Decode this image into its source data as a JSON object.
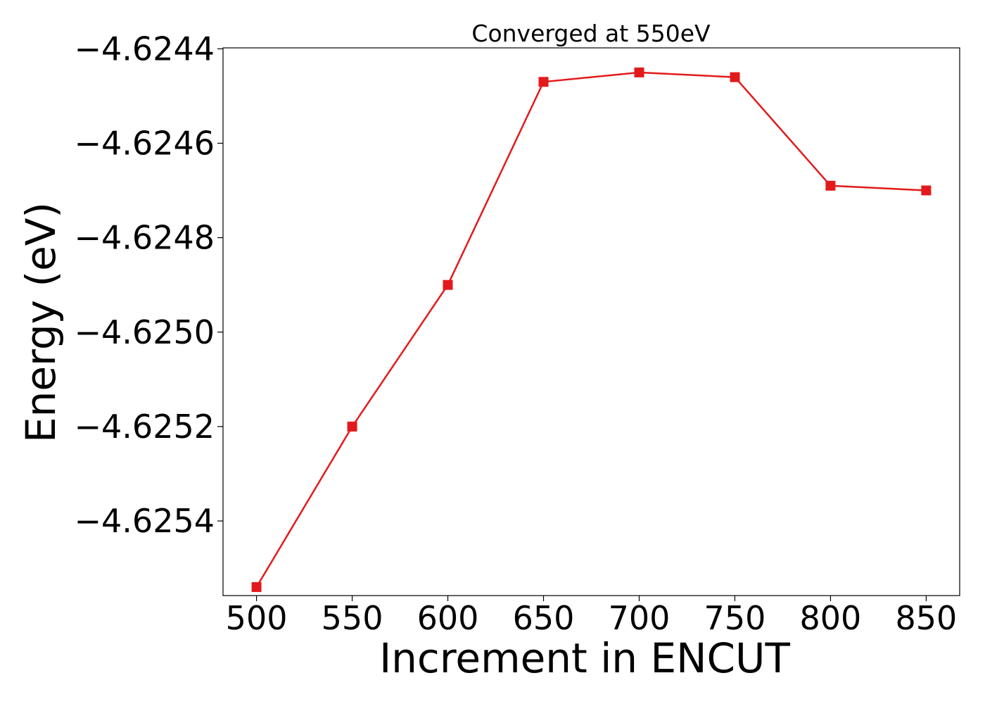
{
  "chart_data": {
    "type": "line",
    "title": "Converged at 550eV",
    "xlabel": "Increment in ENCUT",
    "ylabel": "Energy (eV)",
    "x": [
      500,
      550,
      600,
      650,
      700,
      750,
      800,
      850
    ],
    "series": [
      {
        "values": [
          -4.62554,
          -4.6252,
          -4.6249,
          -4.62447,
          -4.62445,
          -4.62446,
          -4.62469,
          -4.6247
        ],
        "color": "#e31a1c",
        "marker": "square"
      }
    ],
    "xticks": [
      500,
      550,
      600,
      650,
      700,
      750,
      800,
      850
    ],
    "xtick_labels": [
      "500",
      "550",
      "600",
      "650",
      "700",
      "750",
      "800",
      "850"
    ],
    "yticks": [
      -4.6244,
      -4.6246,
      -4.6248,
      -4.625,
      -4.6252,
      -4.6254
    ],
    "ytick_labels": [
      "−4.6244",
      "−4.6246",
      "−4.6248",
      "−4.6250",
      "−4.6252",
      "−4.6254"
    ],
    "xlim": [
      482.5,
      867.5
    ],
    "ylim": [
      -4.625558,
      -4.624398
    ],
    "grid": false,
    "legend": "none"
  }
}
